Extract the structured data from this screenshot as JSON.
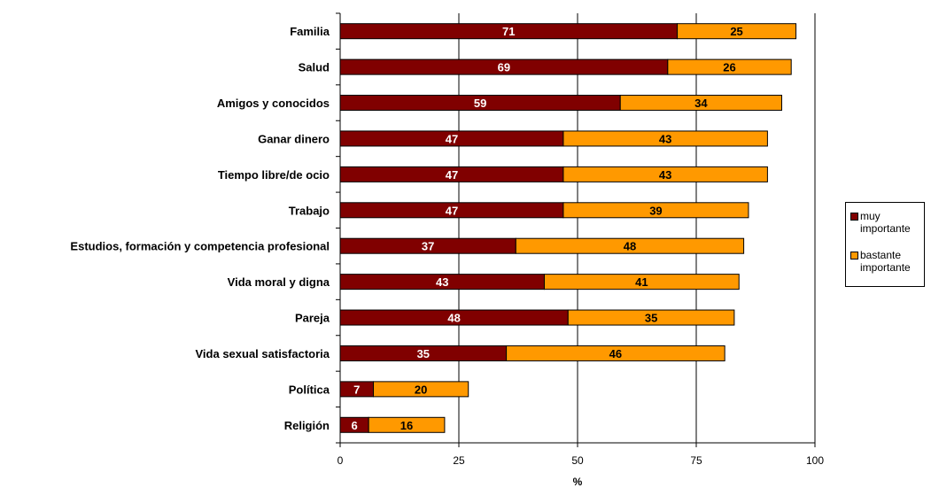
{
  "chart_data": {
    "type": "bar",
    "orientation": "horizontal",
    "stacked": true,
    "categories": [
      "Familia",
      "Salud",
      "Amigos y conocidos",
      "Ganar dinero",
      "Tiempo libre/de ocio",
      "Trabajo",
      "Estudios, formación y competencia profesional",
      "Vida moral y digna",
      "Pareja",
      "Vida sexual satisfactoria",
      "Política",
      "Religión"
    ],
    "series": [
      {
        "name": "muy importante",
        "color": "#800000",
        "label_color": "#ffffff",
        "values": [
          71,
          69,
          59,
          47,
          47,
          47,
          37,
          43,
          48,
          35,
          7,
          6
        ]
      },
      {
        "name": "bastante importante",
        "color": "#ff9900",
        "label_color": "#000000",
        "values": [
          25,
          26,
          34,
          43,
          43,
          39,
          48,
          41,
          35,
          46,
          20,
          16
        ]
      }
    ],
    "xlabel": "%",
    "ylabel": "",
    "xlim": [
      0,
      100
    ],
    "xticks": [
      0,
      25,
      50,
      75,
      100
    ],
    "grid": "vertical",
    "legend_position": "right"
  }
}
